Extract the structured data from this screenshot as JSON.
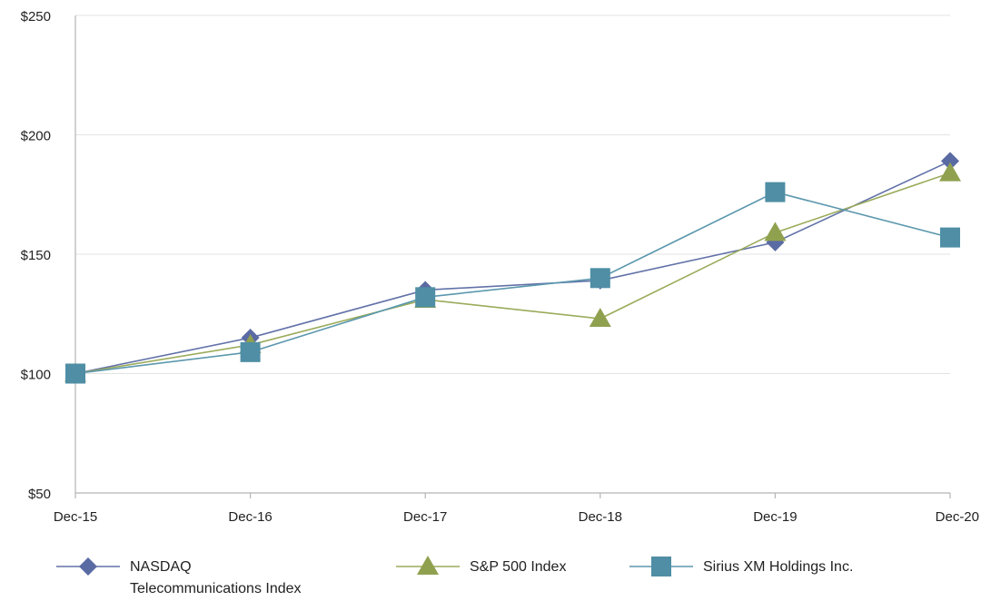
{
  "chart_data": {
    "type": "line",
    "title": "",
    "xlabel": "",
    "ylabel": "",
    "categories": [
      "Dec-15",
      "Dec-16",
      "Dec-17",
      "Dec-18",
      "Dec-19",
      "Dec-20"
    ],
    "y_ticks": [
      "$50",
      "$100",
      "$150",
      "$200",
      "$250"
    ],
    "y_tick_values": [
      50,
      100,
      150,
      200,
      250
    ],
    "ylim": [
      50,
      250
    ],
    "grid": "horizontal",
    "legend_position": "bottom",
    "series": [
      {
        "name": "NASDAQ Telecommunications Index",
        "name_lines": [
          "NASDAQ",
          "Telecommunications Index"
        ],
        "marker": "diamond",
        "line_color": "#6272a8",
        "marker_color": "#5a6aa3",
        "values": [
          100,
          115,
          135,
          139,
          155,
          189
        ]
      },
      {
        "name": "S&P 500 Index",
        "name_lines": [
          "S&P 500 Index"
        ],
        "marker": "triangle",
        "line_color": "#9aab5a",
        "marker_color": "#8fa14f",
        "values": [
          100,
          112,
          131,
          123,
          159,
          184
        ]
      },
      {
        "name": "Sirius XM Holdings Inc.",
        "name_lines": [
          "Sirius XM Holdings Inc."
        ],
        "marker": "square",
        "line_color": "#5b97ad",
        "marker_color": "#4f8ea5",
        "values": [
          100,
          109,
          132,
          140,
          176,
          157
        ]
      }
    ]
  }
}
